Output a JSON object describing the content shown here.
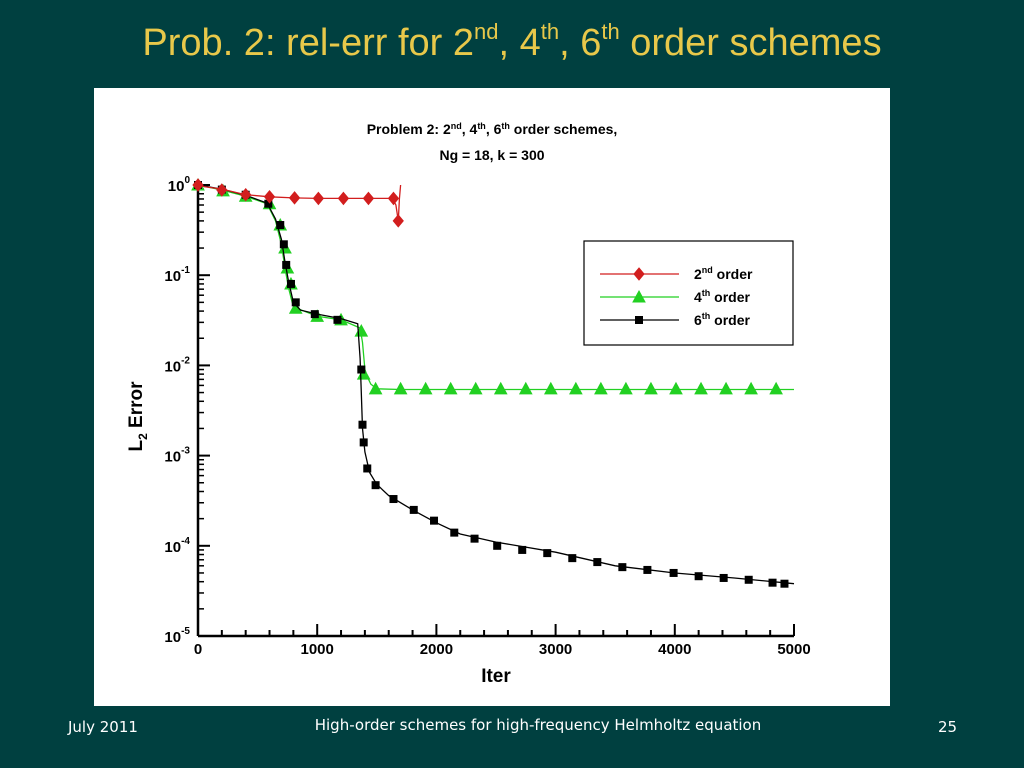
{
  "slide": {
    "title_parts": {
      "prefix": "Prob. 2: rel-err for 2",
      "sup1": "nd",
      "mid1": ", 4",
      "sup2": "th",
      "mid2": ", 6",
      "sup3": "th",
      "suffix": " order schemes"
    },
    "footer": {
      "date": "July 2011",
      "caption": "High-order schemes for high-frequency Helmholtz equation",
      "page": "25"
    }
  },
  "chart_data": {
    "type": "line",
    "title_lines": [
      {
        "parts": [
          {
            "t": "Problem 2:  2"
          },
          {
            "t": "nd",
            "sup": true
          },
          {
            "t": ",  4"
          },
          {
            "t": "th",
            "sup": true
          },
          {
            "t": ",  6"
          },
          {
            "t": "th",
            "sup": true
          },
          {
            "t": " order schemes,"
          }
        ]
      },
      {
        "parts": [
          {
            "t": "Ng = 18,  k = 300"
          }
        ]
      }
    ],
    "xlabel": "Iter",
    "ylabel": {
      "main": "L",
      "sub": "2",
      "rest": " Error"
    },
    "xlim": [
      0,
      5000
    ],
    "ylim_exp": [
      -5,
      0
    ],
    "yscale": "log",
    "xticks": [
      0,
      1000,
      2000,
      3000,
      4000,
      5000
    ],
    "yticks": [
      {
        "base": "10",
        "exp": "0"
      },
      {
        "base": "10",
        "exp": "-1"
      },
      {
        "base": "10",
        "exp": "-2"
      },
      {
        "base": "10",
        "exp": "-3"
      },
      {
        "base": "10",
        "exp": "-4"
      },
      {
        "base": "10",
        "exp": "-5"
      }
    ],
    "grid": false,
    "legend_position": "upper-right",
    "series": [
      {
        "legend": {
          "num": "2",
          "sup": "nd",
          "text": " order"
        },
        "color": "#d21e1e",
        "marker": "diamond",
        "line": [
          [
            0,
            1.0
          ],
          [
            50,
            0.96
          ],
          [
            200,
            0.9
          ],
          [
            400,
            0.78
          ],
          [
            600,
            0.74
          ],
          [
            800,
            0.72
          ],
          [
            1000,
            0.71
          ],
          [
            1400,
            0.71
          ],
          [
            1630,
            0.71
          ],
          [
            1660,
            0.6
          ],
          [
            1680,
            0.4
          ],
          [
            1690,
            0.7
          ],
          [
            1700,
            1.0
          ]
        ],
        "points": [
          [
            0,
            1.0
          ],
          [
            200,
            0.88
          ],
          [
            400,
            0.78
          ],
          [
            600,
            0.74
          ],
          [
            810,
            0.72
          ],
          [
            1010,
            0.71
          ],
          [
            1220,
            0.71
          ],
          [
            1430,
            0.71
          ],
          [
            1640,
            0.71
          ],
          [
            1680,
            0.4
          ]
        ]
      },
      {
        "legend": {
          "num": "4",
          "sup": "th",
          "text": " order"
        },
        "color": "#22d022",
        "marker": "triangle",
        "line": [
          [
            0,
            1.0
          ],
          [
            200,
            0.88
          ],
          [
            400,
            0.75
          ],
          [
            580,
            0.62
          ],
          [
            650,
            0.4
          ],
          [
            700,
            0.22
          ],
          [
            730,
            0.12
          ],
          [
            760,
            0.072
          ],
          [
            790,
            0.05
          ],
          [
            830,
            0.043
          ],
          [
            1000,
            0.035
          ],
          [
            1200,
            0.032
          ],
          [
            1360,
            0.026
          ],
          [
            1380,
            0.018
          ],
          [
            1400,
            0.009
          ],
          [
            1420,
            0.0075
          ],
          [
            1450,
            0.0062
          ],
          [
            1500,
            0.0055
          ],
          [
            1700,
            0.0054
          ],
          [
            2500,
            0.0054
          ],
          [
            4000,
            0.0054
          ],
          [
            5000,
            0.0054
          ]
        ],
        "points": [
          [
            0,
            1.0
          ],
          [
            210,
            0.86
          ],
          [
            400,
            0.75
          ],
          [
            600,
            0.62
          ],
          [
            690,
            0.36
          ],
          [
            730,
            0.2
          ],
          [
            750,
            0.12
          ],
          [
            780,
            0.08
          ],
          [
            820,
            0.043
          ],
          [
            1000,
            0.035
          ],
          [
            1200,
            0.032
          ],
          [
            1370,
            0.024
          ],
          [
            1390,
            0.008
          ],
          [
            1490,
            0.0055
          ],
          [
            1700,
            0.0055
          ],
          [
            1910,
            0.0055
          ],
          [
            2120,
            0.0055
          ],
          [
            2330,
            0.0055
          ],
          [
            2540,
            0.0055
          ],
          [
            2750,
            0.0055
          ],
          [
            2960,
            0.0055
          ],
          [
            3170,
            0.0055
          ],
          [
            3380,
            0.0055
          ],
          [
            3590,
            0.0055
          ],
          [
            3800,
            0.0055
          ],
          [
            4010,
            0.0055
          ],
          [
            4220,
            0.0055
          ],
          [
            4430,
            0.0055
          ],
          [
            4640,
            0.0055
          ],
          [
            4850,
            0.0055
          ]
        ]
      },
      {
        "legend": {
          "num": "6",
          "sup": "th",
          "text": " order"
        },
        "color": "#000000",
        "marker": "square",
        "line": [
          [
            0,
            1.0
          ],
          [
            200,
            0.9
          ],
          [
            400,
            0.77
          ],
          [
            580,
            0.63
          ],
          [
            650,
            0.42
          ],
          [
            700,
            0.25
          ],
          [
            730,
            0.14
          ],
          [
            760,
            0.085
          ],
          [
            800,
            0.05
          ],
          [
            860,
            0.041
          ],
          [
            1000,
            0.037
          ],
          [
            1200,
            0.033
          ],
          [
            1340,
            0.029
          ],
          [
            1360,
            0.012
          ],
          [
            1370,
            0.005
          ],
          [
            1380,
            0.002
          ],
          [
            1400,
            0.0011
          ],
          [
            1440,
            0.00065
          ],
          [
            1500,
            0.00048
          ],
          [
            1600,
            0.00036
          ],
          [
            1800,
            0.00025
          ],
          [
            2000,
            0.00018
          ],
          [
            2200,
            0.000135
          ],
          [
            2500,
            0.00011
          ],
          [
            3000,
            8.5e-05
          ],
          [
            3500,
            6e-05
          ],
          [
            4000,
            5e-05
          ],
          [
            4500,
            4.4e-05
          ],
          [
            5000,
            3.8e-05
          ]
        ],
        "points": [
          [
            0,
            1.0
          ],
          [
            200,
            0.89
          ],
          [
            400,
            0.78
          ],
          [
            590,
            0.62
          ],
          [
            690,
            0.36
          ],
          [
            720,
            0.22
          ],
          [
            740,
            0.13
          ],
          [
            780,
            0.08
          ],
          [
            820,
            0.05
          ],
          [
            980,
            0.037
          ],
          [
            1170,
            0.032
          ],
          [
            1370,
            0.009
          ],
          [
            1380,
            0.0022
          ],
          [
            1390,
            0.0014
          ],
          [
            1420,
            0.00072
          ],
          [
            1490,
            0.00047
          ],
          [
            1640,
            0.00033
          ],
          [
            1810,
            0.00025
          ],
          [
            1980,
            0.00019
          ],
          [
            2150,
            0.00014
          ],
          [
            2320,
            0.00012
          ],
          [
            2510,
            0.0001
          ],
          [
            2720,
            9e-05
          ],
          [
            2930,
            8.3e-05
          ],
          [
            3140,
            7.3e-05
          ],
          [
            3350,
            6.6e-05
          ],
          [
            3560,
            5.8e-05
          ],
          [
            3770,
            5.4e-05
          ],
          [
            3990,
            5e-05
          ],
          [
            4200,
            4.6e-05
          ],
          [
            4410,
            4.4e-05
          ],
          [
            4620,
            4.2e-05
          ],
          [
            4820,
            3.9e-05
          ],
          [
            4920,
            3.8e-05
          ]
        ]
      }
    ]
  }
}
